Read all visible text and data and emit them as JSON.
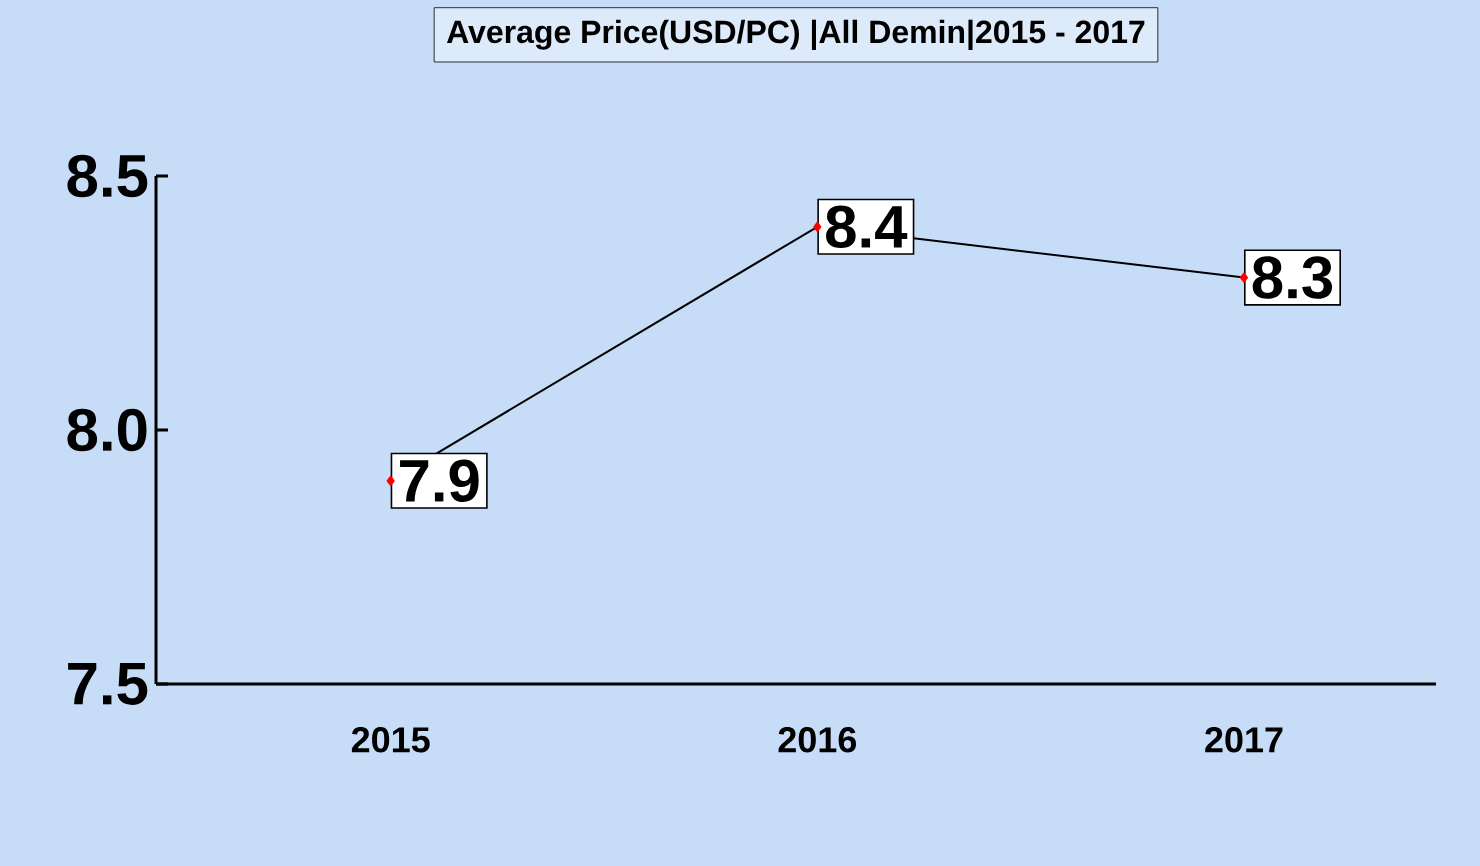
{
  "chart_data": {
    "type": "line",
    "title": "Average Price(USD/PC)  |All Demin|2015 - 2017",
    "categories": [
      "2015",
      "2016",
      "2017"
    ],
    "series": [
      {
        "color": "#000000",
        "values": [
          7.9,
          8.4,
          8.3
        ]
      }
    ],
    "ylim": [
      7.5,
      8.5
    ],
    "yticks": [
      {
        "value": 7.5,
        "label": "7.5"
      },
      {
        "value": 8.0,
        "label": "8.0"
      },
      {
        "value": 8.5,
        "label": "8.5"
      }
    ],
    "data_labels": true,
    "marker": "diamond",
    "line_style": "solid",
    "grid": false
  }
}
